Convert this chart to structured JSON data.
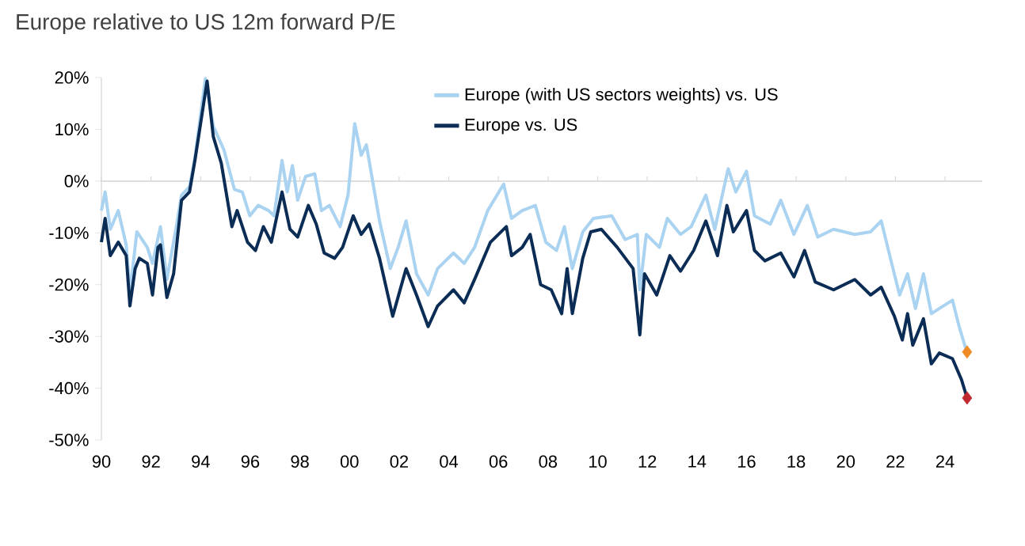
{
  "chart_data": {
    "type": "line",
    "title": "Europe relative to US 12m forward P/E",
    "xlim": [
      1990,
      2025.5
    ],
    "xticks": [
      {
        "value": 1990,
        "label": "90"
      },
      {
        "value": 1992,
        "label": "92"
      },
      {
        "value": 1994,
        "label": "94"
      },
      {
        "value": 1996,
        "label": "96"
      },
      {
        "value": 1998,
        "label": "98"
      },
      {
        "value": 2000,
        "label": "00"
      },
      {
        "value": 2002,
        "label": "02"
      },
      {
        "value": 2004,
        "label": "04"
      },
      {
        "value": 2006,
        "label": "06"
      },
      {
        "value": 2008,
        "label": "08"
      },
      {
        "value": 2010,
        "label": "10"
      },
      {
        "value": 2012,
        "label": "12"
      },
      {
        "value": 2014,
        "label": "14"
      },
      {
        "value": 2016,
        "label": "16"
      },
      {
        "value": 2018,
        "label": "18"
      },
      {
        "value": 2020,
        "label": "20"
      },
      {
        "value": 2022,
        "label": "22"
      },
      {
        "value": 2024,
        "label": "24"
      }
    ],
    "ylim": [
      -50,
      20
    ],
    "yticks": [
      {
        "value": -50,
        "label": "-50%"
      },
      {
        "value": -40,
        "label": "-40%"
      },
      {
        "value": -30,
        "label": "-30%"
      },
      {
        "value": -20,
        "label": "-20%"
      },
      {
        "value": -10,
        "label": "-10%"
      },
      {
        "value": 0,
        "label": "0%"
      },
      {
        "value": 10,
        "label": "10%"
      },
      {
        "value": 20,
        "label": "20%"
      }
    ],
    "grid": false,
    "legend": "top right",
    "marker": "none",
    "line_style": "solid",
    "ref_lines": [
      {
        "axis": "y",
        "value": 0,
        "color": "#d9d9d9"
      }
    ],
    "series": [
      {
        "name": "Europe (with US sectors weights) vs. US",
        "color": "#a9d3f0",
        "x": [
          1990.0,
          1990.15,
          1990.36,
          1990.68,
          1991.0,
          1991.15,
          1991.43,
          1991.85,
          1992.06,
          1992.38,
          1992.64,
          1993.02,
          1993.23,
          1993.55,
          1993.77,
          1994.19,
          1994.51,
          1994.94,
          1995.36,
          1995.68,
          1995.98,
          1996.32,
          1996.74,
          1996.96,
          1997.28,
          1997.49,
          1997.7,
          1997.91,
          1998.23,
          1998.6,
          1998.87,
          1999.19,
          1999.62,
          1999.94,
          2000.21,
          2000.47,
          2000.68,
          2001.21,
          2001.64,
          2001.96,
          2002.28,
          2002.7,
          2003.17,
          2003.55,
          2004.19,
          2004.62,
          2005.04,
          2005.57,
          2006.21,
          2006.53,
          2006.96,
          2007.49,
          2007.91,
          2008.34,
          2008.66,
          2008.98,
          2009.4,
          2009.83,
          2010.57,
          2011.11,
          2011.6,
          2011.7,
          2011.96,
          2012.49,
          2012.81,
          2013.34,
          2013.77,
          2014.36,
          2014.72,
          2015.26,
          2015.57,
          2016.0,
          2016.32,
          2016.96,
          2017.38,
          2017.91,
          2018.45,
          2018.87,
          2019.51,
          2020.36,
          2021.0,
          2021.43,
          2021.85,
          2022.17,
          2022.49,
          2022.81,
          2023.13,
          2023.45,
          2023.77,
          2024.3,
          2024.57,
          2024.89
        ],
        "values": [
          -5.7,
          -2.1,
          -9.3,
          -5.7,
          -12.3,
          -21.5,
          -9.8,
          -12.8,
          -15.9,
          -8.8,
          -19.0,
          -8.8,
          -2.7,
          -1.1,
          4.5,
          19.8,
          10.6,
          6.0,
          -1.6,
          -2.1,
          -6.7,
          -4.7,
          -5.7,
          -6.7,
          4.0,
          -2.1,
          3.0,
          -3.7,
          0.9,
          1.4,
          -5.7,
          -4.7,
          -8.8,
          -2.7,
          11.1,
          5.0,
          7.0,
          -7.7,
          -16.9,
          -12.8,
          -7.7,
          -17.9,
          -22.0,
          -16.9,
          -13.9,
          -15.9,
          -12.8,
          -5.7,
          -0.6,
          -7.2,
          -5.7,
          -4.7,
          -11.8,
          -13.4,
          -8.8,
          -16.9,
          -9.8,
          -7.2,
          -6.7,
          -11.3,
          -10.3,
          -21.0,
          -10.3,
          -12.8,
          -7.2,
          -10.3,
          -8.8,
          -2.7,
          -9.3,
          2.4,
          -2.1,
          1.9,
          -6.7,
          -8.3,
          -3.7,
          -10.3,
          -4.7,
          -10.8,
          -9.3,
          -10.3,
          -9.8,
          -7.7,
          -15.9,
          -22.0,
          -17.9,
          -24.6,
          -17.9,
          -25.6,
          -24.6,
          -23.0,
          -28.1,
          -33.2
        ]
      },
      {
        "name": "Europe vs. US",
        "color": "#0b2d55",
        "x": [
          1990.0,
          1990.15,
          1990.36,
          1990.68,
          1991.0,
          1991.15,
          1991.36,
          1991.53,
          1991.85,
          1992.06,
          1992.28,
          1992.38,
          1992.64,
          1992.91,
          1993.23,
          1993.55,
          1993.77,
          1994.26,
          1994.51,
          1994.83,
          1995.26,
          1995.47,
          1995.89,
          1996.21,
          1996.53,
          1996.85,
          1997.28,
          1997.6,
          1997.91,
          1998.34,
          1998.66,
          1998.98,
          1999.4,
          1999.72,
          2000.15,
          2000.47,
          2000.79,
          2001.21,
          2001.74,
          2002.28,
          2002.7,
          2003.17,
          2003.55,
          2004.19,
          2004.62,
          2005.04,
          2005.68,
          2006.32,
          2006.53,
          2006.96,
          2007.28,
          2007.7,
          2008.13,
          2008.55,
          2008.77,
          2008.98,
          2009.4,
          2009.72,
          2010.15,
          2010.79,
          2011.43,
          2011.7,
          2011.89,
          2012.38,
          2012.91,
          2013.34,
          2013.87,
          2014.36,
          2014.83,
          2015.21,
          2015.47,
          2016.0,
          2016.32,
          2016.74,
          2017.38,
          2017.91,
          2018.34,
          2018.77,
          2019.51,
          2020.36,
          2021.0,
          2021.43,
          2021.96,
          2022.28,
          2022.49,
          2022.7,
          2023.13,
          2023.45,
          2023.77,
          2024.3,
          2024.66,
          2024.89
        ],
        "values": [
          -11.8,
          -7.2,
          -14.4,
          -11.8,
          -14.4,
          -24.1,
          -16.9,
          -14.9,
          -15.9,
          -22.0,
          -12.8,
          -12.3,
          -22.5,
          -17.9,
          -3.7,
          -2.1,
          4.0,
          19.3,
          8.6,
          3.5,
          -8.8,
          -5.7,
          -11.8,
          -13.4,
          -8.8,
          -11.8,
          -2.1,
          -9.3,
          -10.8,
          -4.7,
          -8.3,
          -13.9,
          -14.9,
          -12.8,
          -6.7,
          -10.3,
          -8.3,
          -14.9,
          -26.1,
          -16.9,
          -22.0,
          -28.1,
          -24.1,
          -21.0,
          -23.5,
          -19.0,
          -11.8,
          -8.8,
          -14.4,
          -12.8,
          -10.3,
          -20.0,
          -21.0,
          -25.6,
          -16.9,
          -25.6,
          -14.9,
          -9.8,
          -9.3,
          -12.8,
          -16.9,
          -29.7,
          -17.9,
          -22.0,
          -14.4,
          -17.4,
          -13.4,
          -7.7,
          -14.4,
          -4.7,
          -9.8,
          -5.7,
          -13.4,
          -15.4,
          -13.9,
          -18.5,
          -13.4,
          -19.5,
          -21.0,
          -19.0,
          -22.0,
          -20.5,
          -26.1,
          -30.7,
          -25.6,
          -31.7,
          -26.6,
          -35.3,
          -33.2,
          -34.3,
          -38.3,
          -41.9
        ]
      },
      {
        "type": "scatter",
        "marker": "diamond",
        "color": "#f08a24",
        "x": [
          2024.89
        ],
        "values": [
          -33.0
        ]
      },
      {
        "type": "scatter",
        "marker": "diamond",
        "color": "#c0292f",
        "x": [
          2024.89
        ],
        "values": [
          -41.9
        ]
      }
    ]
  }
}
